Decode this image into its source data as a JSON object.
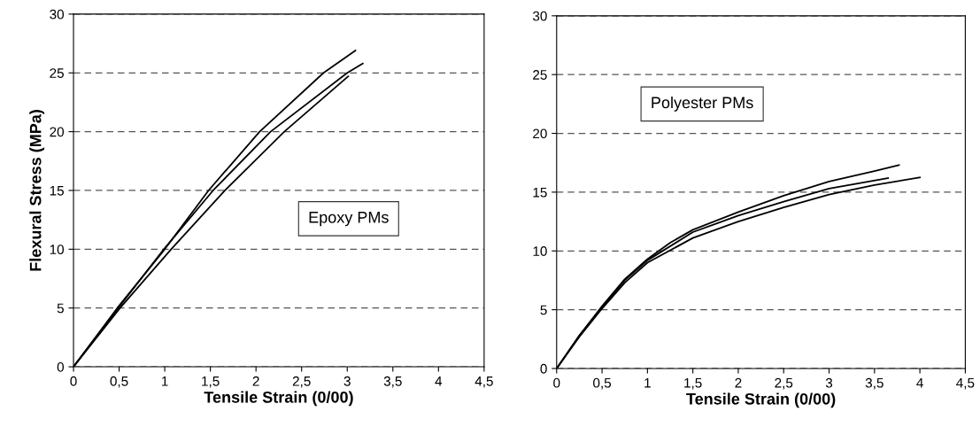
{
  "chart_data": [
    {
      "type": "line",
      "xlabel": "Tensile Strain (0/00)",
      "ylabel": "Flexural Stress (MPa)",
      "annotations": [
        "Epoxy PMs"
      ],
      "xlim": [
        0,
        4.5
      ],
      "ylim": [
        0,
        30
      ],
      "xticks": [
        0,
        {
          "value": 0.5,
          "label": "0,5"
        },
        1,
        {
          "value": 1.5,
          "label": "1,5"
        },
        2,
        {
          "value": 2.5,
          "label": "2,5"
        },
        3,
        {
          "value": 3.5,
          "label": "3,5"
        },
        4,
        {
          "value": 4.5,
          "label": "4,5"
        }
      ],
      "yticks": [
        0,
        5,
        10,
        15,
        20,
        25,
        30
      ],
      "grid": "y",
      "marker": "none",
      "line_style": "solid",
      "series": [
        {
          "color": "#000000",
          "x": [
            0,
            0.48,
            1.0,
            1.48,
            2.04,
            2.74,
            3.09
          ],
          "values": [
            0,
            5,
            10,
            15,
            20,
            25,
            26.9
          ]
        },
        {
          "color": "#000000",
          "x": [
            0,
            0.49,
            0.99,
            1.53,
            2.16,
            3.0,
            3.17
          ],
          "values": [
            0,
            5,
            10,
            15,
            20,
            25,
            25.8
          ]
        },
        {
          "color": "#000000",
          "x": [
            0,
            0.51,
            1.07,
            1.66,
            2.31,
            3.01
          ],
          "values": [
            0,
            5,
            10,
            15,
            20,
            24.7
          ]
        }
      ]
    },
    {
      "type": "line",
      "xlabel": "Tensile Strain (0/00)",
      "annotations": [
        "Polyester PMs"
      ],
      "xlim": [
        0,
        4.5
      ],
      "ylim": [
        0,
        30
      ],
      "xticks": [
        0,
        {
          "value": 0.5,
          "label": "0,5"
        },
        1,
        {
          "value": 1.5,
          "label": "1,5"
        },
        2,
        {
          "value": 2.5,
          "label": "2,5"
        },
        3,
        {
          "value": 3.5,
          "label": "3,5"
        },
        4,
        {
          "value": 4.5,
          "label": "4,5"
        }
      ],
      "yticks": [
        0,
        5,
        10,
        15,
        20,
        25,
        30
      ],
      "grid": "y",
      "marker": "none",
      "line_style": "solid",
      "series": [
        {
          "color": "#000000",
          "x": [
            0,
            0.25,
            0.5,
            0.75,
            1,
            1.25,
            1.5,
            2,
            2.5,
            3,
            3.5,
            3.77
          ],
          "values": [
            0,
            2.8,
            5.3,
            7.6,
            9.3,
            10.7,
            11.8,
            13.3,
            14.7,
            15.9,
            16.8,
            17.3
          ]
        },
        {
          "color": "#000000",
          "x": [
            0,
            0.25,
            0.5,
            0.75,
            1,
            1.5,
            2,
            2.5,
            3,
            3.65
          ],
          "values": [
            0,
            2.8,
            5.2,
            7.5,
            9.2,
            11.6,
            13.0,
            14.2,
            15.3,
            16.2
          ]
        },
        {
          "color": "#000000",
          "x": [
            0,
            0.25,
            0.5,
            0.75,
            1,
            1.5,
            2,
            2.5,
            3,
            3.5,
            4.0
          ],
          "values": [
            0,
            2.7,
            5.1,
            7.3,
            9.0,
            11.1,
            12.5,
            13.7,
            14.8,
            15.6,
            16.25
          ]
        }
      ]
    }
  ]
}
